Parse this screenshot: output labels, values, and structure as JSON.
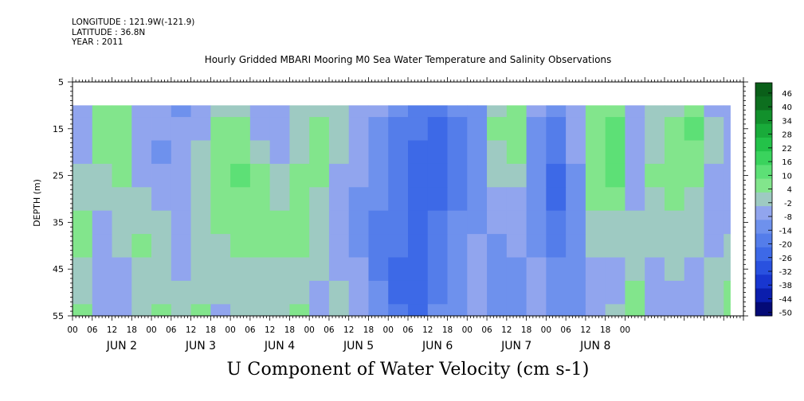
{
  "header": {
    "longitude": "LONGITUDE : 121.9W(-121.9)",
    "latitude": "LATITUDE : 36.8N",
    "year": "YEAR : 2011",
    "title": "Hourly Gridded MBARI Mooring M0 Sea Water Temperature and Salinity Observations"
  },
  "footer": {
    "variable_title": "U Component of Water Velocity (cm s-1)"
  },
  "chart_data": {
    "type": "heatmap",
    "title": "Hourly Gridded MBARI Mooring M0 Sea Water Temperature and Salinity Observations",
    "subtitle": "U Component of Water Velocity (cm s-1)",
    "xlabel": "",
    "ylabel": "DEPTH (m)",
    "ylim": [
      55,
      5
    ],
    "y_ticks": [
      5,
      15,
      25,
      35,
      45,
      55
    ],
    "x_hours_range": [
      0,
      204
    ],
    "data_hours_range": [
      0,
      200
    ],
    "data_depth_range": [
      10,
      55
    ],
    "x_hour_ticks": [
      "00",
      "06",
      "12",
      "18",
      "00",
      "06",
      "12",
      "18",
      "00",
      "06",
      "12",
      "18",
      "00",
      "06",
      "12",
      "18",
      "00",
      "06",
      "12",
      "18",
      "00",
      "06",
      "12",
      "18",
      "00",
      "06",
      "12",
      "18",
      "00"
    ],
    "day_labels": [
      "JUN 2",
      "JUN 3",
      "JUN 4",
      "JUN 5",
      "JUN 6",
      "JUN 7",
      "JUN 8"
    ],
    "colorbar": {
      "levels": [
        -50,
        -44,
        -38,
        -32,
        -26,
        -20,
        -14,
        -8,
        -2,
        4,
        10,
        16,
        22,
        28,
        34,
        40,
        46
      ],
      "labels": [
        "46",
        "40",
        "34",
        "28",
        "22",
        "16",
        "10",
        "4",
        "-2",
        "-8",
        "-14",
        "-20",
        "-26",
        "-32",
        "-38",
        "-44",
        "-50"
      ]
    },
    "depths": [
      10,
      15,
      20,
      25,
      30,
      35,
      40,
      45,
      50,
      55
    ],
    "hours": [
      0,
      6,
      12,
      18,
      24,
      30,
      36,
      42,
      48,
      54,
      60,
      66,
      72,
      78,
      84,
      90,
      96,
      102,
      108,
      114,
      120,
      126,
      132,
      138,
      144,
      150,
      156,
      162,
      168,
      174,
      180,
      186,
      192,
      198
    ],
    "u_velocity_profiles": [
      [
        -6,
        4,
        6,
        -6,
        -8,
        -10,
        -6,
        -2,
        2,
        -6,
        -4,
        -2,
        0,
        0,
        -4,
        -8,
        -14,
        -18,
        -20,
        -14,
        -10,
        2,
        4,
        -6,
        -14,
        -4,
        6,
        8,
        -6,
        -2,
        2,
        6,
        -4,
        -6
      ],
      [
        -6,
        6,
        8,
        -6,
        -8,
        -8,
        -4,
        4,
        6,
        -4,
        -6,
        0,
        4,
        0,
        -4,
        -10,
        -16,
        -20,
        -22,
        -16,
        -10,
        4,
        6,
        -10,
        -16,
        -6,
        8,
        10,
        -6,
        0,
        6,
        10,
        -2,
        -6
      ],
      [
        -4,
        4,
        6,
        -8,
        -10,
        -6,
        -2,
        6,
        8,
        2,
        -4,
        2,
        6,
        -2,
        -6,
        -12,
        -18,
        -22,
        -22,
        -18,
        -12,
        2,
        4,
        -12,
        -20,
        -8,
        8,
        12,
        -8,
        2,
        4,
        8,
        -2,
        -6
      ],
      [
        -2,
        2,
        4,
        -6,
        -8,
        -4,
        0,
        6,
        10,
        4,
        -2,
        4,
        4,
        -4,
        -8,
        -14,
        -18,
        -24,
        -24,
        -18,
        -12,
        -2,
        0,
        -14,
        -22,
        -10,
        6,
        10,
        -6,
        4,
        6,
        4,
        -4,
        -8
      ],
      [
        2,
        -2,
        2,
        -2,
        -4,
        -4,
        2,
        6,
        8,
        4,
        2,
        6,
        2,
        -6,
        -10,
        -14,
        -20,
        -24,
        -22,
        -16,
        -12,
        -6,
        -4,
        -14,
        -24,
        -12,
        4,
        6,
        -4,
        2,
        4,
        2,
        -6,
        -8
      ],
      [
        4,
        -4,
        0,
        2,
        -2,
        -4,
        2,
        4,
        6,
        4,
        4,
        6,
        0,
        -6,
        -10,
        -16,
        -20,
        -24,
        -20,
        -14,
        -10,
        -8,
        -6,
        -12,
        -20,
        -12,
        2,
        2,
        -2,
        0,
        2,
        0,
        -6,
        -6
      ],
      [
        4,
        -4,
        -2,
        4,
        0,
        -6,
        0,
        2,
        4,
        4,
        4,
        4,
        -2,
        -4,
        -10,
        -16,
        -20,
        -26,
        -20,
        -12,
        -8,
        -10,
        -8,
        -10,
        -16,
        -10,
        0,
        -2,
        -2,
        -2,
        0,
        -2,
        -4,
        -2
      ],
      [
        2,
        -6,
        -4,
        2,
        2,
        -4,
        0,
        0,
        2,
        2,
        2,
        2,
        -2,
        -4,
        -8,
        -16,
        -22,
        -26,
        -18,
        -10,
        -6,
        -12,
        -10,
        -8,
        -12,
        -10,
        -4,
        -4,
        2,
        -4,
        -2,
        -4,
        -2,
        2
      ],
      [
        2,
        -6,
        -6,
        0,
        2,
        -2,
        2,
        -2,
        0,
        0,
        2,
        2,
        -4,
        -2,
        -6,
        -14,
        -22,
        -24,
        -16,
        -10,
        -6,
        -12,
        -12,
        -8,
        -10,
        -12,
        -6,
        -4,
        4,
        -6,
        -4,
        -6,
        0,
        4
      ],
      [
        4,
        -4,
        -6,
        -2,
        4,
        0,
        6,
        -4,
        -2,
        -2,
        2,
        4,
        -4,
        -2,
        -6,
        -14,
        -20,
        -22,
        -14,
        -10,
        -8,
        -12,
        -14,
        -8,
        -10,
        -14,
        -8,
        -2,
        4,
        -6,
        -6,
        -6,
        2,
        4
      ]
    ]
  }
}
